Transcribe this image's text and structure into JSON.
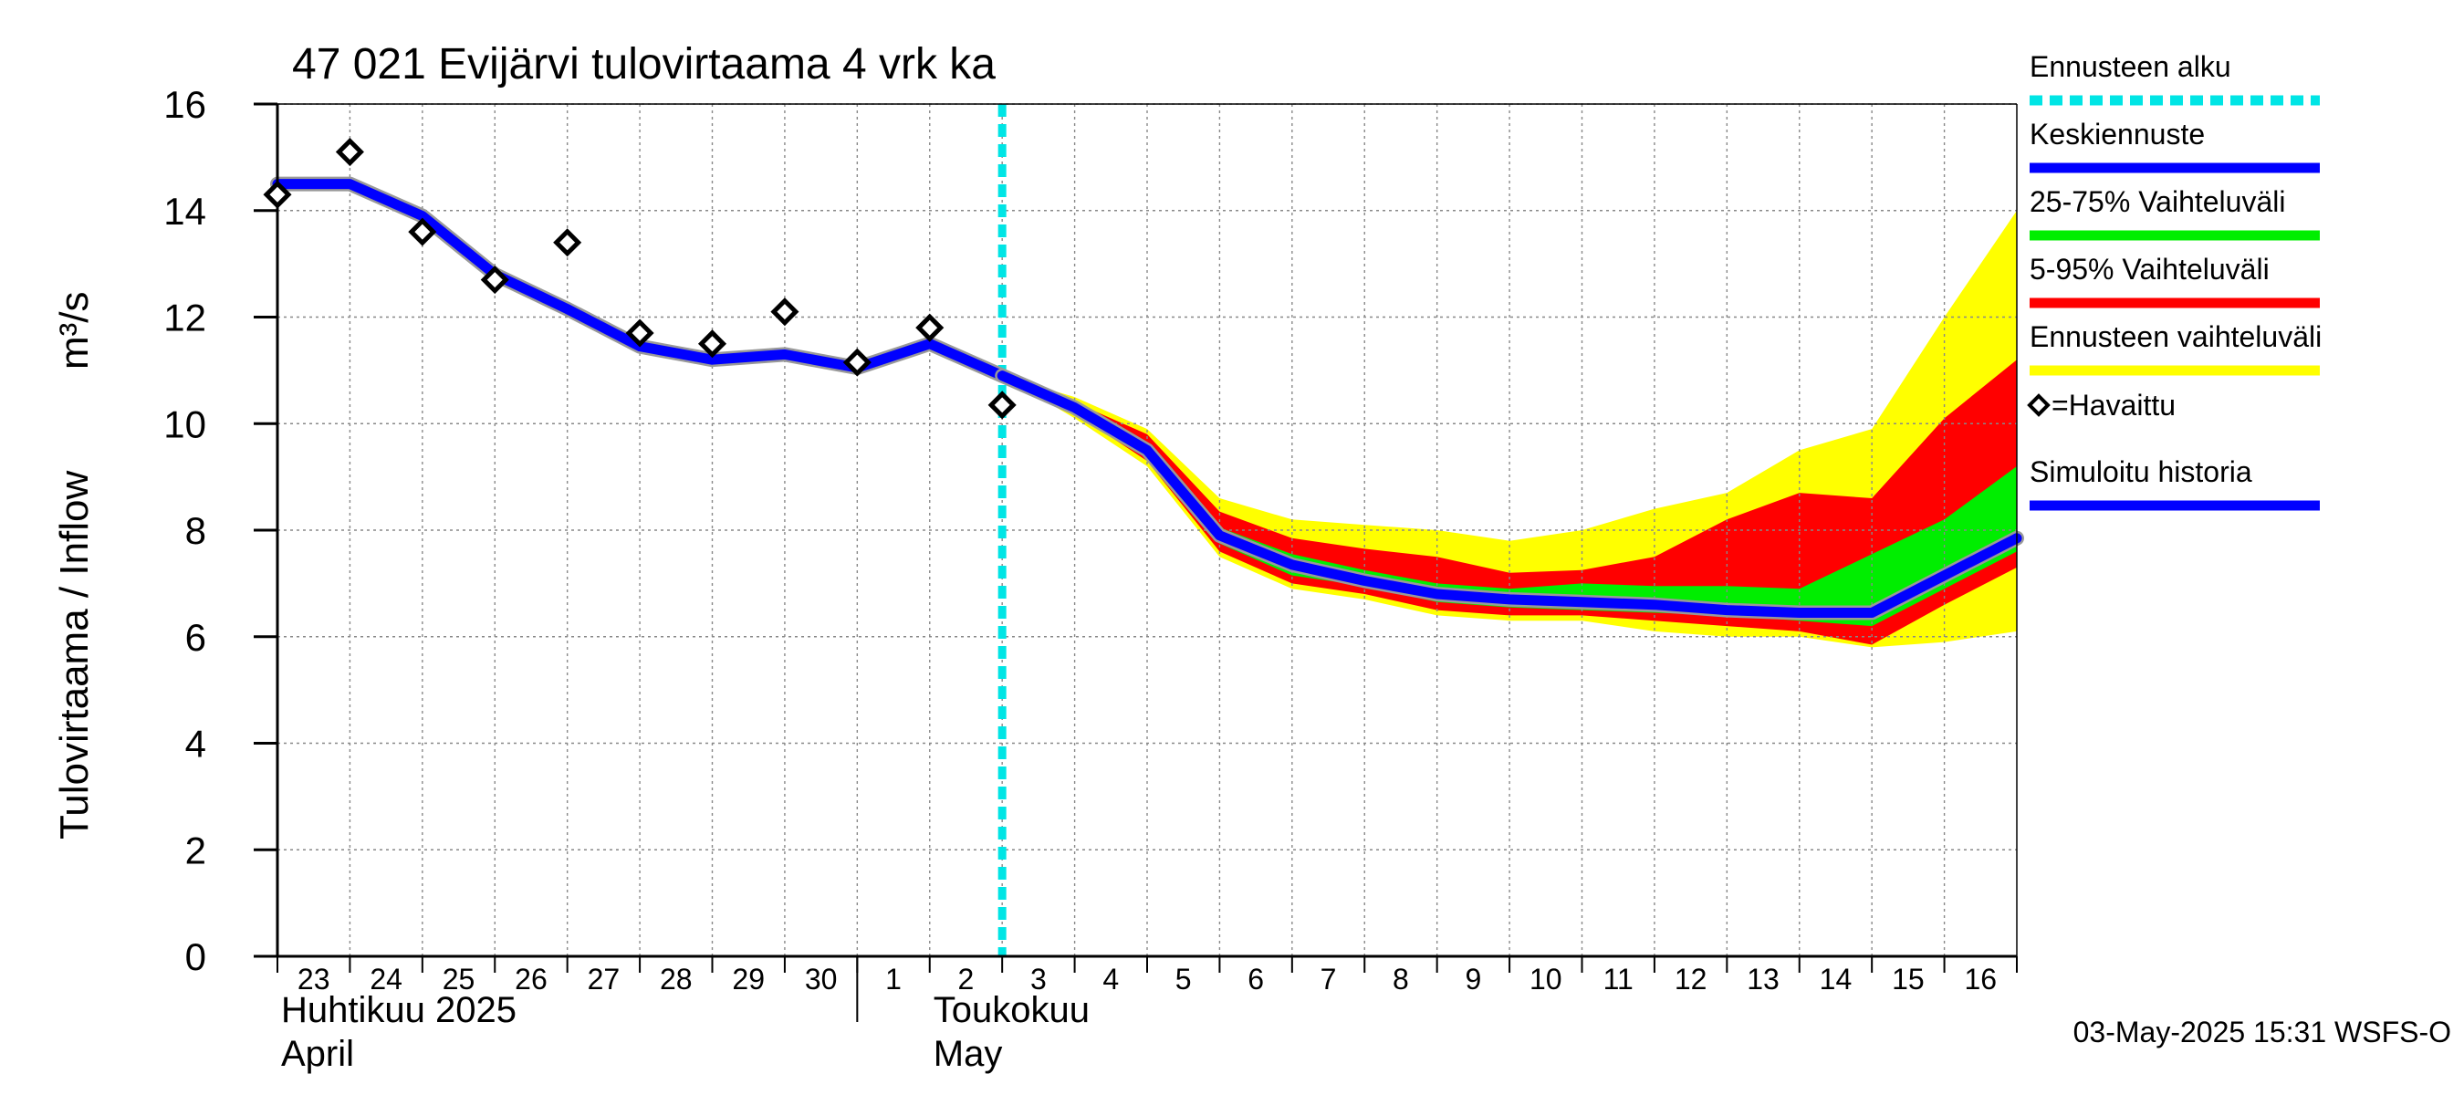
{
  "chart_data": {
    "type": "line",
    "title": "47 021 Evijärvi tulovirtaama 4 vrk ka",
    "ylabel": "Tulovirtaama / Inflow",
    "yunit": "m³/s",
    "ylim": [
      0,
      16
    ],
    "yticks": [
      0,
      2,
      4,
      6,
      8,
      10,
      12,
      14,
      16
    ],
    "xlim": [
      "2025-04-23",
      "2025-05-17"
    ],
    "xlabels": [
      {
        "date": "2025-04-23",
        "label": "23"
      },
      {
        "date": "2025-04-24",
        "label": "24"
      },
      {
        "date": "2025-04-25",
        "label": "25"
      },
      {
        "date": "2025-04-26",
        "label": "26"
      },
      {
        "date": "2025-04-27",
        "label": "27"
      },
      {
        "date": "2025-04-28",
        "label": "28"
      },
      {
        "date": "2025-04-29",
        "label": "29"
      },
      {
        "date": "2025-04-30",
        "label": "30"
      },
      {
        "date": "2025-05-01",
        "label": "1"
      },
      {
        "date": "2025-05-02",
        "label": "2"
      },
      {
        "date": "2025-05-03",
        "label": "3"
      },
      {
        "date": "2025-05-04",
        "label": "4"
      },
      {
        "date": "2025-05-05",
        "label": "5"
      },
      {
        "date": "2025-05-06",
        "label": "6"
      },
      {
        "date": "2025-05-07",
        "label": "7"
      },
      {
        "date": "2025-05-08",
        "label": "8"
      },
      {
        "date": "2025-05-09",
        "label": "9"
      },
      {
        "date": "2025-05-10",
        "label": "10"
      },
      {
        "date": "2025-05-11",
        "label": "11"
      },
      {
        "date": "2025-05-12",
        "label": "12"
      },
      {
        "date": "2025-05-13",
        "label": "13"
      },
      {
        "date": "2025-05-14",
        "label": "14"
      },
      {
        "date": "2025-05-15",
        "label": "15"
      },
      {
        "date": "2025-05-16",
        "label": "16"
      }
    ],
    "month_labels": [
      {
        "date": "2025-04-23",
        "fi": "Huhtikuu  2025",
        "en": "April"
      },
      {
        "date": "2025-05-02",
        "fi": "Toukokuu",
        "en": "May"
      }
    ],
    "month_divider": "2025-05-01",
    "forecast_start": "2025-05-03",
    "grid": true,
    "legend_position": "right",
    "series": [
      {
        "name": "Ennusteen vaihteluväli",
        "kind": "band",
        "color": "#ffff00",
        "x": [
          "2025-05-03",
          "2025-05-04",
          "2025-05-05",
          "2025-05-06",
          "2025-05-07",
          "2025-05-08",
          "2025-05-09",
          "2025-05-10",
          "2025-05-11",
          "2025-05-12",
          "2025-05-13",
          "2025-05-14",
          "2025-05-15",
          "2025-05-16",
          "2025-05-17"
        ],
        "low": [
          10.9,
          10.1,
          9.2,
          7.5,
          6.9,
          6.7,
          6.4,
          6.3,
          6.3,
          6.1,
          6.0,
          6.0,
          5.8,
          5.9,
          6.1
        ],
        "high": [
          10.9,
          10.5,
          9.9,
          8.6,
          8.2,
          8.1,
          8.0,
          7.8,
          8.0,
          8.4,
          8.7,
          9.5,
          9.9,
          12.0,
          14.0
        ]
      },
      {
        "name": "5-95% Vaihteluväli",
        "kind": "band",
        "color": "#ff0000",
        "x": [
          "2025-05-03",
          "2025-05-04",
          "2025-05-05",
          "2025-05-06",
          "2025-05-07",
          "2025-05-08",
          "2025-05-09",
          "2025-05-10",
          "2025-05-11",
          "2025-05-12",
          "2025-05-13",
          "2025-05-14",
          "2025-05-15",
          "2025-05-16",
          "2025-05-17"
        ],
        "low": [
          10.9,
          10.2,
          9.3,
          7.6,
          7.0,
          6.8,
          6.5,
          6.4,
          6.4,
          6.3,
          6.2,
          6.1,
          5.85,
          6.6,
          7.3
        ],
        "high": [
          10.9,
          10.4,
          9.8,
          8.35,
          7.85,
          7.65,
          7.5,
          7.2,
          7.25,
          7.5,
          8.2,
          8.7,
          8.6,
          10.1,
          11.2
        ]
      },
      {
        "name": "25-75% Vaihteluväli",
        "kind": "band",
        "color": "#00ee00",
        "x": [
          "2025-05-03",
          "2025-05-04",
          "2025-05-05",
          "2025-05-06",
          "2025-05-07",
          "2025-05-08",
          "2025-05-09",
          "2025-05-10",
          "2025-05-11",
          "2025-05-12",
          "2025-05-13",
          "2025-05-14",
          "2025-05-15",
          "2025-05-16",
          "2025-05-17"
        ],
        "low": [
          10.9,
          10.3,
          9.45,
          7.75,
          7.15,
          6.95,
          6.65,
          6.55,
          6.5,
          6.45,
          6.4,
          6.3,
          6.2,
          6.9,
          7.6
        ],
        "high": [
          10.9,
          10.35,
          9.6,
          8.05,
          7.55,
          7.25,
          7.0,
          6.9,
          7.0,
          6.95,
          6.95,
          6.9,
          7.55,
          8.2,
          9.2
        ]
      },
      {
        "name": "Simuloitu historia",
        "kind": "line",
        "color": "#0000ff",
        "x": [
          "2025-04-23",
          "2025-04-24",
          "2025-04-25",
          "2025-04-26",
          "2025-04-27",
          "2025-04-28",
          "2025-04-29",
          "2025-04-30",
          "2025-05-01",
          "2025-05-02",
          "2025-05-03"
        ],
        "y": [
          14.5,
          14.5,
          13.9,
          12.8,
          12.15,
          11.45,
          11.2,
          11.3,
          11.05,
          11.5,
          10.9
        ]
      },
      {
        "name": "Keskiennuste",
        "kind": "line",
        "color": "#0000ff",
        "x": [
          "2025-05-03",
          "2025-05-04",
          "2025-05-05",
          "2025-05-06",
          "2025-05-07",
          "2025-05-08",
          "2025-05-09",
          "2025-05-10",
          "2025-05-11",
          "2025-05-12",
          "2025-05-13",
          "2025-05-14",
          "2025-05-15",
          "2025-05-16",
          "2025-05-17"
        ],
        "y": [
          10.9,
          10.3,
          9.5,
          7.9,
          7.35,
          7.05,
          6.8,
          6.7,
          6.65,
          6.6,
          6.5,
          6.45,
          6.45,
          7.15,
          7.85
        ]
      },
      {
        "name": "=Havaittu",
        "kind": "points",
        "color": "#000000",
        "x": [
          "2025-04-23",
          "2025-04-24",
          "2025-04-25",
          "2025-04-26",
          "2025-04-27",
          "2025-04-28",
          "2025-04-29",
          "2025-04-30",
          "2025-05-01",
          "2025-05-02",
          "2025-05-03"
        ],
        "y": [
          14.3,
          15.1,
          13.6,
          12.7,
          13.4,
          11.7,
          11.5,
          12.1,
          11.15,
          11.8,
          10.35
        ]
      }
    ],
    "legend": [
      {
        "label": "Ennusteen alku",
        "color": "#00e5e5",
        "style": "dashed"
      },
      {
        "label": "Keskiennuste",
        "color": "#0000ff",
        "style": "line"
      },
      {
        "label": "25-75% Vaihteluväli",
        "color": "#00ee00",
        "style": "line"
      },
      {
        "label": "5-95% Vaihteluväli",
        "color": "#ff0000",
        "style": "line"
      },
      {
        "label": "Ennusteen vaihteluväli",
        "color": "#ffff00",
        "style": "line"
      },
      {
        "label": "=Havaittu",
        "color": "#000000",
        "style": "marker"
      },
      {
        "label": "Simuloitu historia",
        "color": "#0000ff",
        "style": "line"
      }
    ],
    "timestamp": "03-May-2025 15:31 WSFS-O"
  }
}
